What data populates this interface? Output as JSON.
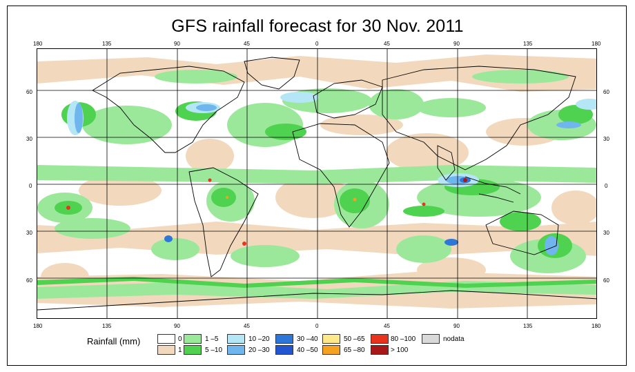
{
  "title": "GFS rainfall forecast for 30 Nov. 2011",
  "axes": {
    "top_ticks": [
      "180",
      "135",
      "90",
      "45",
      "0",
      "45",
      "90",
      "135",
      "180"
    ],
    "bottom_ticks": [
      "180",
      "135",
      "90",
      "45",
      "0",
      "45",
      "90",
      "135",
      "180"
    ],
    "left_ticks": [
      "60",
      "30",
      "0",
      "30",
      "60"
    ],
    "right_ticks": [
      "60",
      "30",
      "0",
      "30",
      "60"
    ]
  },
  "legend": {
    "title": "Rainfall (mm)",
    "items": [
      {
        "label": "0",
        "color": "#ffffff"
      },
      {
        "label": "1",
        "color": "#f2d9bd"
      },
      {
        "label": "1 –5",
        "color": "#9be89b"
      },
      {
        "label": "5 –10",
        "color": "#4fd24f"
      },
      {
        "label": "10 –20",
        "color": "#b5e6f5"
      },
      {
        "label": "20 –30",
        "color": "#6fb6ee"
      },
      {
        "label": "30 –40",
        "color": "#2e77d8"
      },
      {
        "label": "40 –50",
        "color": "#2255d0"
      },
      {
        "label": "50 –65",
        "color": "#fde98a"
      },
      {
        "label": "65 –80",
        "color": "#f7a21f"
      },
      {
        "label": "80 –100",
        "color": "#e8341c"
      },
      {
        "label": "> 100",
        "color": "#a81818"
      },
      {
        "label": "nodata",
        "color": "#d9d9d9"
      }
    ]
  },
  "colors": {
    "land_outline": "#000000",
    "grid": "#000000",
    "background": "#ffffff"
  }
}
